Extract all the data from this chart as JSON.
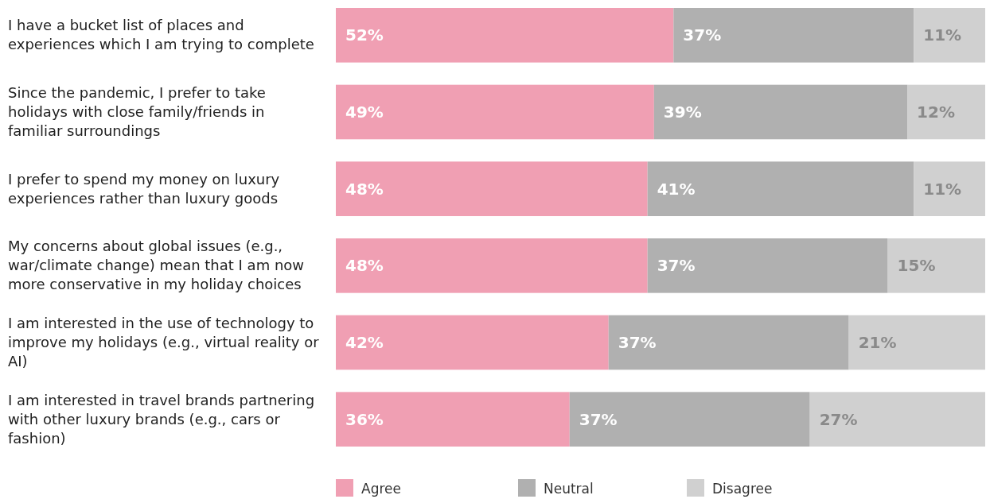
{
  "chart_data": {
    "type": "bar",
    "orientation": "horizontal",
    "stacked": true,
    "categories": [
      "I have a bucket list of places and experiences which I am trying to complete",
      "Since the pandemic, I prefer to take holidays with close family/friends in familiar surroundings",
      "I prefer to spend my money on luxury experiences rather than luxury goods",
      "My concerns about global issues (e.g., war/climate change) mean that I am now more conservative in my holiday choices",
      "I am interested in the use of technology to improve my holidays (e.g., virtual reality or AI)",
      "I am interested in travel brands partnering with other luxury brands (e.g., cars or fashion)"
    ],
    "series": [
      {
        "name": "Agree",
        "color": "#f09fb3",
        "values": [
          52,
          49,
          48,
          48,
          42,
          36
        ],
        "value_labels": [
          "52%",
          "49%",
          "48%",
          "48%",
          "42%",
          "36%"
        ]
      },
      {
        "name": "Neutral",
        "color": "#b0b0b0",
        "values": [
          37,
          39,
          41,
          37,
          37,
          37
        ],
        "value_labels": [
          "37%",
          "39%",
          "41%",
          "37%",
          "37%",
          "37%"
        ]
      },
      {
        "name": "Disagree",
        "color": "#d0d0d0",
        "values": [
          11,
          12,
          11,
          15,
          21,
          27
        ],
        "value_labels": [
          "11%",
          "12%",
          "11%",
          "15%",
          "21%",
          "27%"
        ]
      }
    ],
    "xlim": [
      0,
      100
    ],
    "tick_labels": "y",
    "legend": "bottom"
  }
}
